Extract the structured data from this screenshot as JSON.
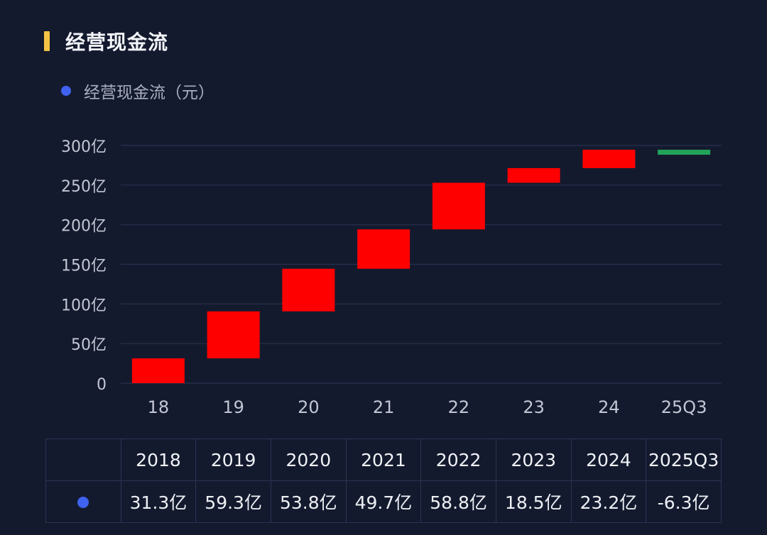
{
  "header": {
    "title": "经营现金流"
  },
  "legend": {
    "label": "经营现金流（元）"
  },
  "colors": {
    "increase": "#ff0000",
    "decrease": "#23a35a",
    "accent": "#f3c343",
    "legend_dot": "#3f63f0"
  },
  "chart_data": {
    "type": "waterfall",
    "categories": [
      "18",
      "19",
      "20",
      "21",
      "22",
      "23",
      "24",
      "25Q3"
    ],
    "values": [
      31.3,
      59.3,
      53.8,
      49.7,
      58.8,
      18.5,
      23.2,
      -6.3
    ],
    "unit": "亿",
    "ylim": [
      0,
      300
    ],
    "yticks": [
      "0",
      "50亿",
      "100亿",
      "150亿",
      "200亿",
      "250亿",
      "300亿"
    ],
    "grid": true
  },
  "table": {
    "headers": [
      "2018",
      "2019",
      "2020",
      "2021",
      "2022",
      "2023",
      "2024",
      "2025Q3"
    ],
    "values": [
      "31.3亿",
      "59.3亿",
      "53.8亿",
      "49.7亿",
      "58.8亿",
      "18.5亿",
      "23.2亿",
      "-6.3亿"
    ]
  }
}
